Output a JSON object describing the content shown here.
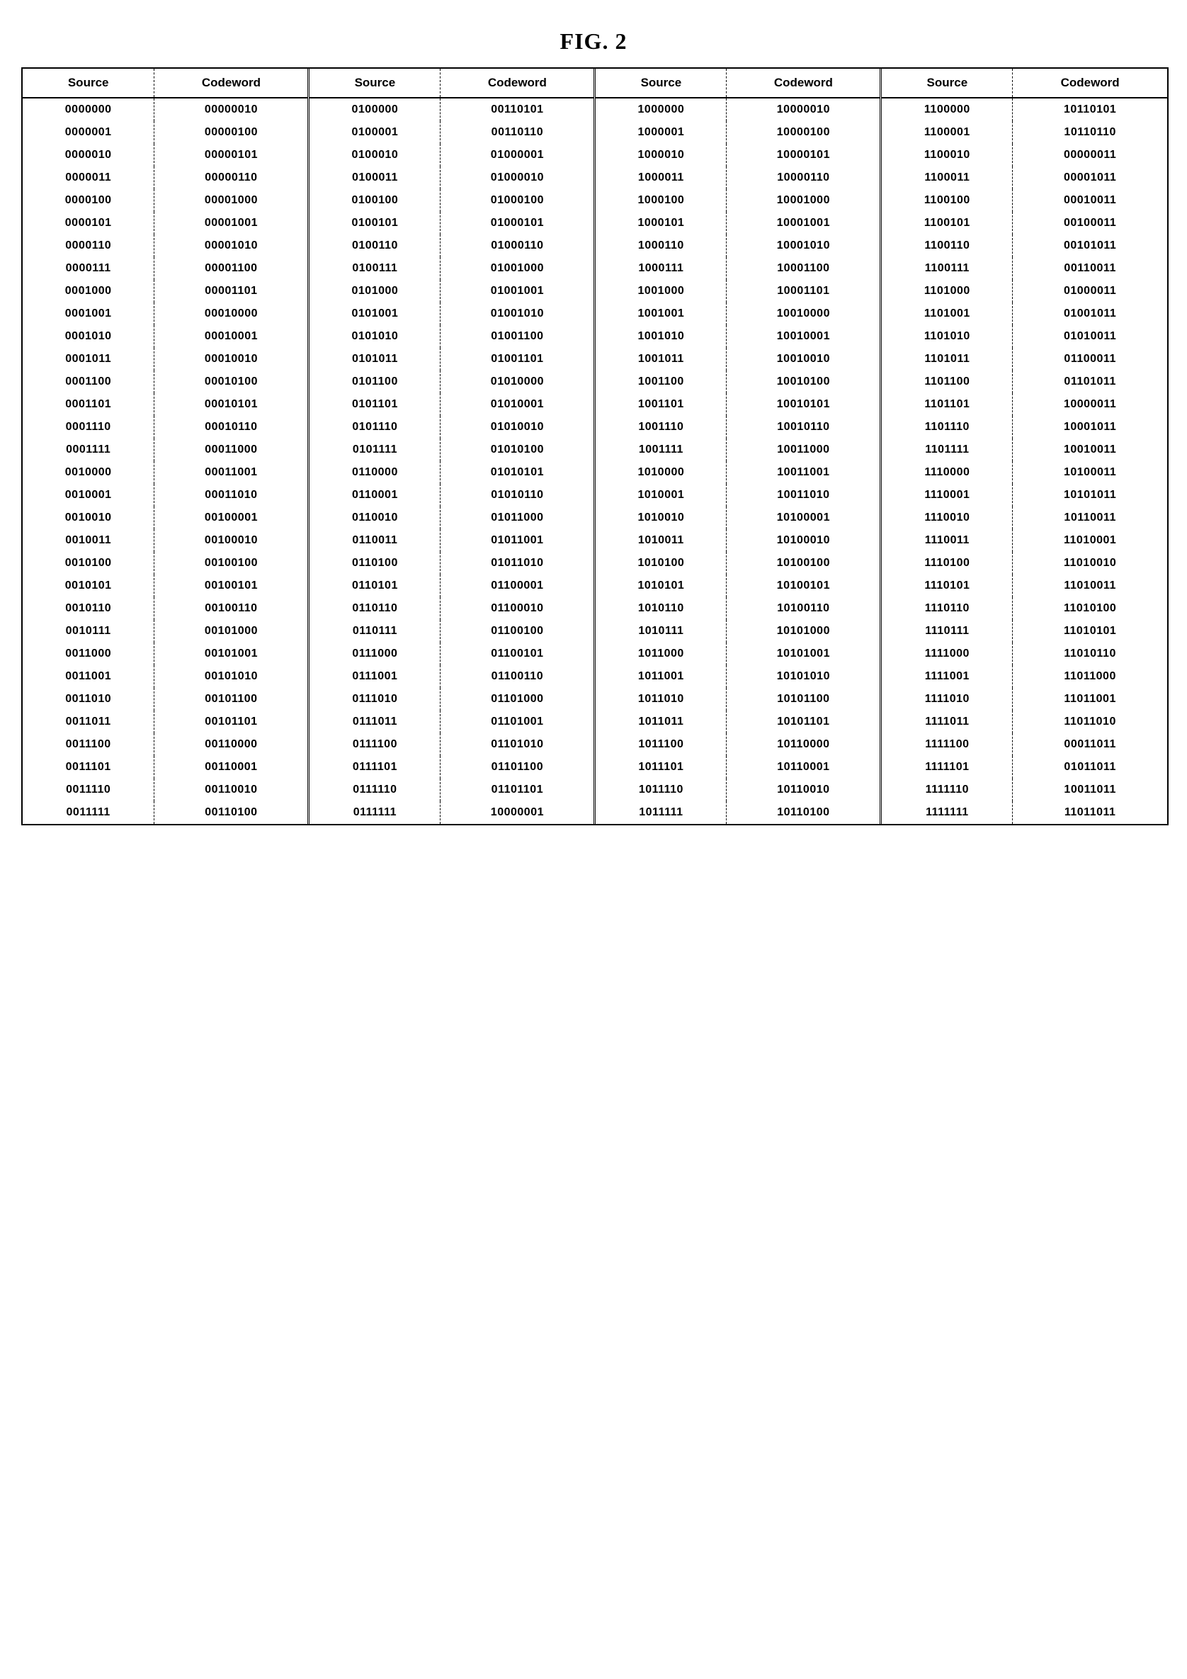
{
  "title": "FIG. 2",
  "headers": {
    "source": "Source",
    "codeword": "Codeword"
  },
  "rows": [
    {
      "s1": "0000000",
      "c1": "00000010",
      "s2": "0100000",
      "c2": "00110101",
      "s3": "1000000",
      "c3": "10000010",
      "s4": "1100000",
      "c4": "10110101"
    },
    {
      "s1": "0000001",
      "c1": "00000100",
      "s2": "0100001",
      "c2": "00110110",
      "s3": "1000001",
      "c3": "10000100",
      "s4": "1100001",
      "c4": "10110110"
    },
    {
      "s1": "0000010",
      "c1": "00000101",
      "s2": "0100010",
      "c2": "01000001",
      "s3": "1000010",
      "c3": "10000101",
      "s4": "1100010",
      "c4": "00000011"
    },
    {
      "s1": "0000011",
      "c1": "00000110",
      "s2": "0100011",
      "c2": "01000010",
      "s3": "1000011",
      "c3": "10000110",
      "s4": "1100011",
      "c4": "00001011"
    },
    {
      "s1": "0000100",
      "c1": "00001000",
      "s2": "0100100",
      "c2": "01000100",
      "s3": "1000100",
      "c3": "10001000",
      "s4": "1100100",
      "c4": "00010011"
    },
    {
      "s1": "0000101",
      "c1": "00001001",
      "s2": "0100101",
      "c2": "01000101",
      "s3": "1000101",
      "c3": "10001001",
      "s4": "1100101",
      "c4": "00100011"
    },
    {
      "s1": "0000110",
      "c1": "00001010",
      "s2": "0100110",
      "c2": "01000110",
      "s3": "1000110",
      "c3": "10001010",
      "s4": "1100110",
      "c4": "00101011"
    },
    {
      "s1": "0000111",
      "c1": "00001100",
      "s2": "0100111",
      "c2": "01001000",
      "s3": "1000111",
      "c3": "10001100",
      "s4": "1100111",
      "c4": "00110011"
    },
    {
      "s1": "0001000",
      "c1": "00001101",
      "s2": "0101000",
      "c2": "01001001",
      "s3": "1001000",
      "c3": "10001101",
      "s4": "1101000",
      "c4": "01000011"
    },
    {
      "s1": "0001001",
      "c1": "00010000",
      "s2": "0101001",
      "c2": "01001010",
      "s3": "1001001",
      "c3": "10010000",
      "s4": "1101001",
      "c4": "01001011"
    },
    {
      "s1": "0001010",
      "c1": "00010001",
      "s2": "0101010",
      "c2": "01001100",
      "s3": "1001010",
      "c3": "10010001",
      "s4": "1101010",
      "c4": "01010011"
    },
    {
      "s1": "0001011",
      "c1": "00010010",
      "s2": "0101011",
      "c2": "01001101",
      "s3": "1001011",
      "c3": "10010010",
      "s4": "1101011",
      "c4": "01100011"
    },
    {
      "s1": "0001100",
      "c1": "00010100",
      "s2": "0101100",
      "c2": "01010000",
      "s3": "1001100",
      "c3": "10010100",
      "s4": "1101100",
      "c4": "01101011"
    },
    {
      "s1": "0001101",
      "c1": "00010101",
      "s2": "0101101",
      "c2": "01010001",
      "s3": "1001101",
      "c3": "10010101",
      "s4": "1101101",
      "c4": "10000011"
    },
    {
      "s1": "0001110",
      "c1": "00010110",
      "s2": "0101110",
      "c2": "01010010",
      "s3": "1001110",
      "c3": "10010110",
      "s4": "1101110",
      "c4": "10001011"
    },
    {
      "s1": "0001111",
      "c1": "00011000",
      "s2": "0101111",
      "c2": "01010100",
      "s3": "1001111",
      "c3": "10011000",
      "s4": "1101111",
      "c4": "10010011"
    },
    {
      "s1": "0010000",
      "c1": "00011001",
      "s2": "0110000",
      "c2": "01010101",
      "s3": "1010000",
      "c3": "10011001",
      "s4": "1110000",
      "c4": "10100011"
    },
    {
      "s1": "0010001",
      "c1": "00011010",
      "s2": "0110001",
      "c2": "01010110",
      "s3": "1010001",
      "c3": "10011010",
      "s4": "1110001",
      "c4": "10101011"
    },
    {
      "s1": "0010010",
      "c1": "00100001",
      "s2": "0110010",
      "c2": "01011000",
      "s3": "1010010",
      "c3": "10100001",
      "s4": "1110010",
      "c4": "10110011"
    },
    {
      "s1": "0010011",
      "c1": "00100010",
      "s2": "0110011",
      "c2": "01011001",
      "s3": "1010011",
      "c3": "10100010",
      "s4": "1110011",
      "c4": "11010001"
    },
    {
      "s1": "0010100",
      "c1": "00100100",
      "s2": "0110100",
      "c2": "01011010",
      "s3": "1010100",
      "c3": "10100100",
      "s4": "1110100",
      "c4": "11010010"
    },
    {
      "s1": "0010101",
      "c1": "00100101",
      "s2": "0110101",
      "c2": "01100001",
      "s3": "1010101",
      "c3": "10100101",
      "s4": "1110101",
      "c4": "11010011"
    },
    {
      "s1": "0010110",
      "c1": "00100110",
      "s2": "0110110",
      "c2": "01100010",
      "s3": "1010110",
      "c3": "10100110",
      "s4": "1110110",
      "c4": "11010100"
    },
    {
      "s1": "0010111",
      "c1": "00101000",
      "s2": "0110111",
      "c2": "01100100",
      "s3": "1010111",
      "c3": "10101000",
      "s4": "1110111",
      "c4": "11010101"
    },
    {
      "s1": "0011000",
      "c1": "00101001",
      "s2": "0111000",
      "c2": "01100101",
      "s3": "1011000",
      "c3": "10101001",
      "s4": "1111000",
      "c4": "11010110"
    },
    {
      "s1": "0011001",
      "c1": "00101010",
      "s2": "0111001",
      "c2": "01100110",
      "s3": "1011001",
      "c3": "10101010",
      "s4": "1111001",
      "c4": "11011000"
    },
    {
      "s1": "0011010",
      "c1": "00101100",
      "s2": "0111010",
      "c2": "01101000",
      "s3": "1011010",
      "c3": "10101100",
      "s4": "1111010",
      "c4": "11011001"
    },
    {
      "s1": "0011011",
      "c1": "00101101",
      "s2": "0111011",
      "c2": "01101001",
      "s3": "1011011",
      "c3": "10101101",
      "s4": "1111011",
      "c4": "11011010"
    },
    {
      "s1": "0011100",
      "c1": "00110000",
      "s2": "0111100",
      "c2": "01101010",
      "s3": "1011100",
      "c3": "10110000",
      "s4": "1111100",
      "c4": "00011011"
    },
    {
      "s1": "0011101",
      "c1": "00110001",
      "s2": "0111101",
      "c2": "01101100",
      "s3": "1011101",
      "c3": "10110001",
      "s4": "1111101",
      "c4": "01011011"
    },
    {
      "s1": "0011110",
      "c1": "00110010",
      "s2": "0111110",
      "c2": "01101101",
      "s3": "1011110",
      "c3": "10110010",
      "s4": "1111110",
      "c4": "10011011"
    },
    {
      "s1": "0011111",
      "c1": "00110100",
      "s2": "0111111",
      "c2": "10000001",
      "s3": "1011111",
      "c3": "10110100",
      "s4": "1111111",
      "c4": "11011011"
    }
  ]
}
